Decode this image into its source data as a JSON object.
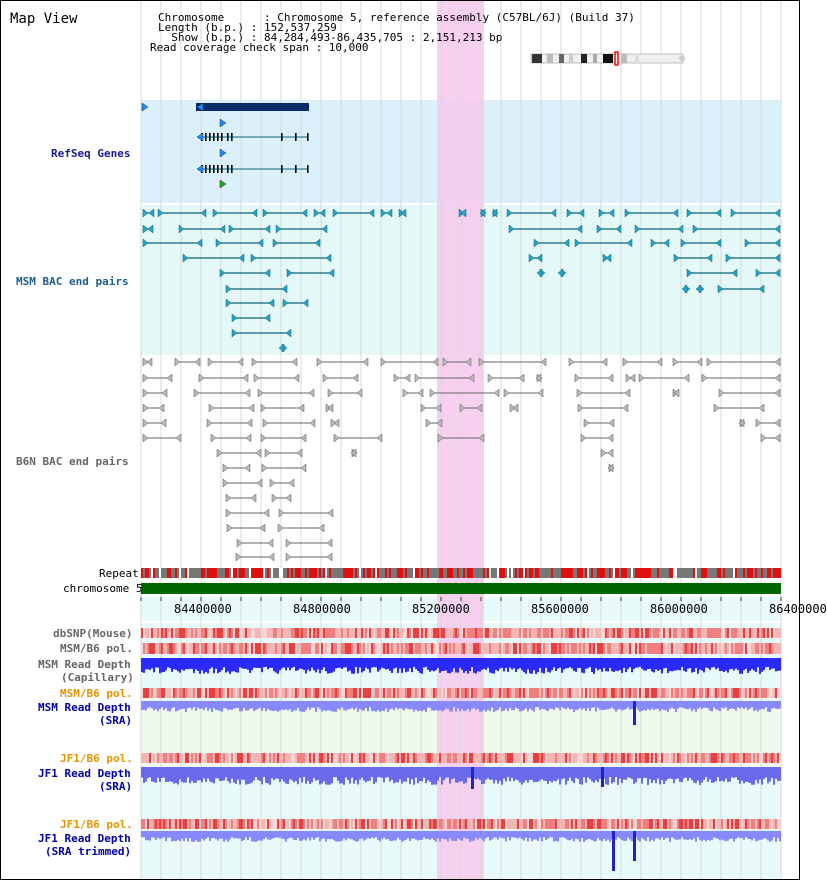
{
  "page": {
    "title": "Map View"
  },
  "info": {
    "chromosome_line": "Chromosome      : Chromosome 5, reference assembly (C57BL/6J) (Build 37)",
    "length_line": "Length (b.p.) : 152,537,259",
    "show_line": "  Show (b.p.) : 84,284,493-86,435,705 : 2,151,213 bp",
    "span_line": "Read coverage check span : 10,000"
  },
  "tracks": {
    "refseq": "RefSeq Genes",
    "msm_bac": "MSM BAC end pairs",
    "b6n_bac": "B6N BAC end pairs",
    "repeat": "Repeat",
    "chromosome": "chromosome 5",
    "dbsnp": "dbSNP(Mouse)",
    "msm_b6_pol_1": "MSM/B6 pol.",
    "msm_depth_cap_1": "MSM Read Depth",
    "msm_depth_cap_2": "(Capillary)",
    "msm_b6_pol_2": "MSM/B6 pol.",
    "msm_depth_sra_1": "MSM Read Depth",
    "msm_depth_sra_2": "(SRA)",
    "jf1_pol_1": "JF1/B6 pol.",
    "jf1_depth_sra_1": "JF1 Read Depth",
    "jf1_depth_sra_2": "(SRA)",
    "jf1_pol_2": "JF1/B6 pol.",
    "jf1_trim_1": "JF1 Read Depth",
    "jf1_trim_2": "(SRA trimmed)"
  },
  "axis": {
    "ticks": [
      "84400000",
      "84800000",
      "85200000",
      "85600000",
      "86000000",
      "86400000"
    ]
  },
  "colors": {
    "refseq_band": "#dbf0fa",
    "bac_band": "#e4f8f8",
    "highlight": "#f7c8ec",
    "chromosome_bar": "#006600",
    "msm_sra_band": "#eef9ee",
    "gene_color": "#0a6677"
  }
}
